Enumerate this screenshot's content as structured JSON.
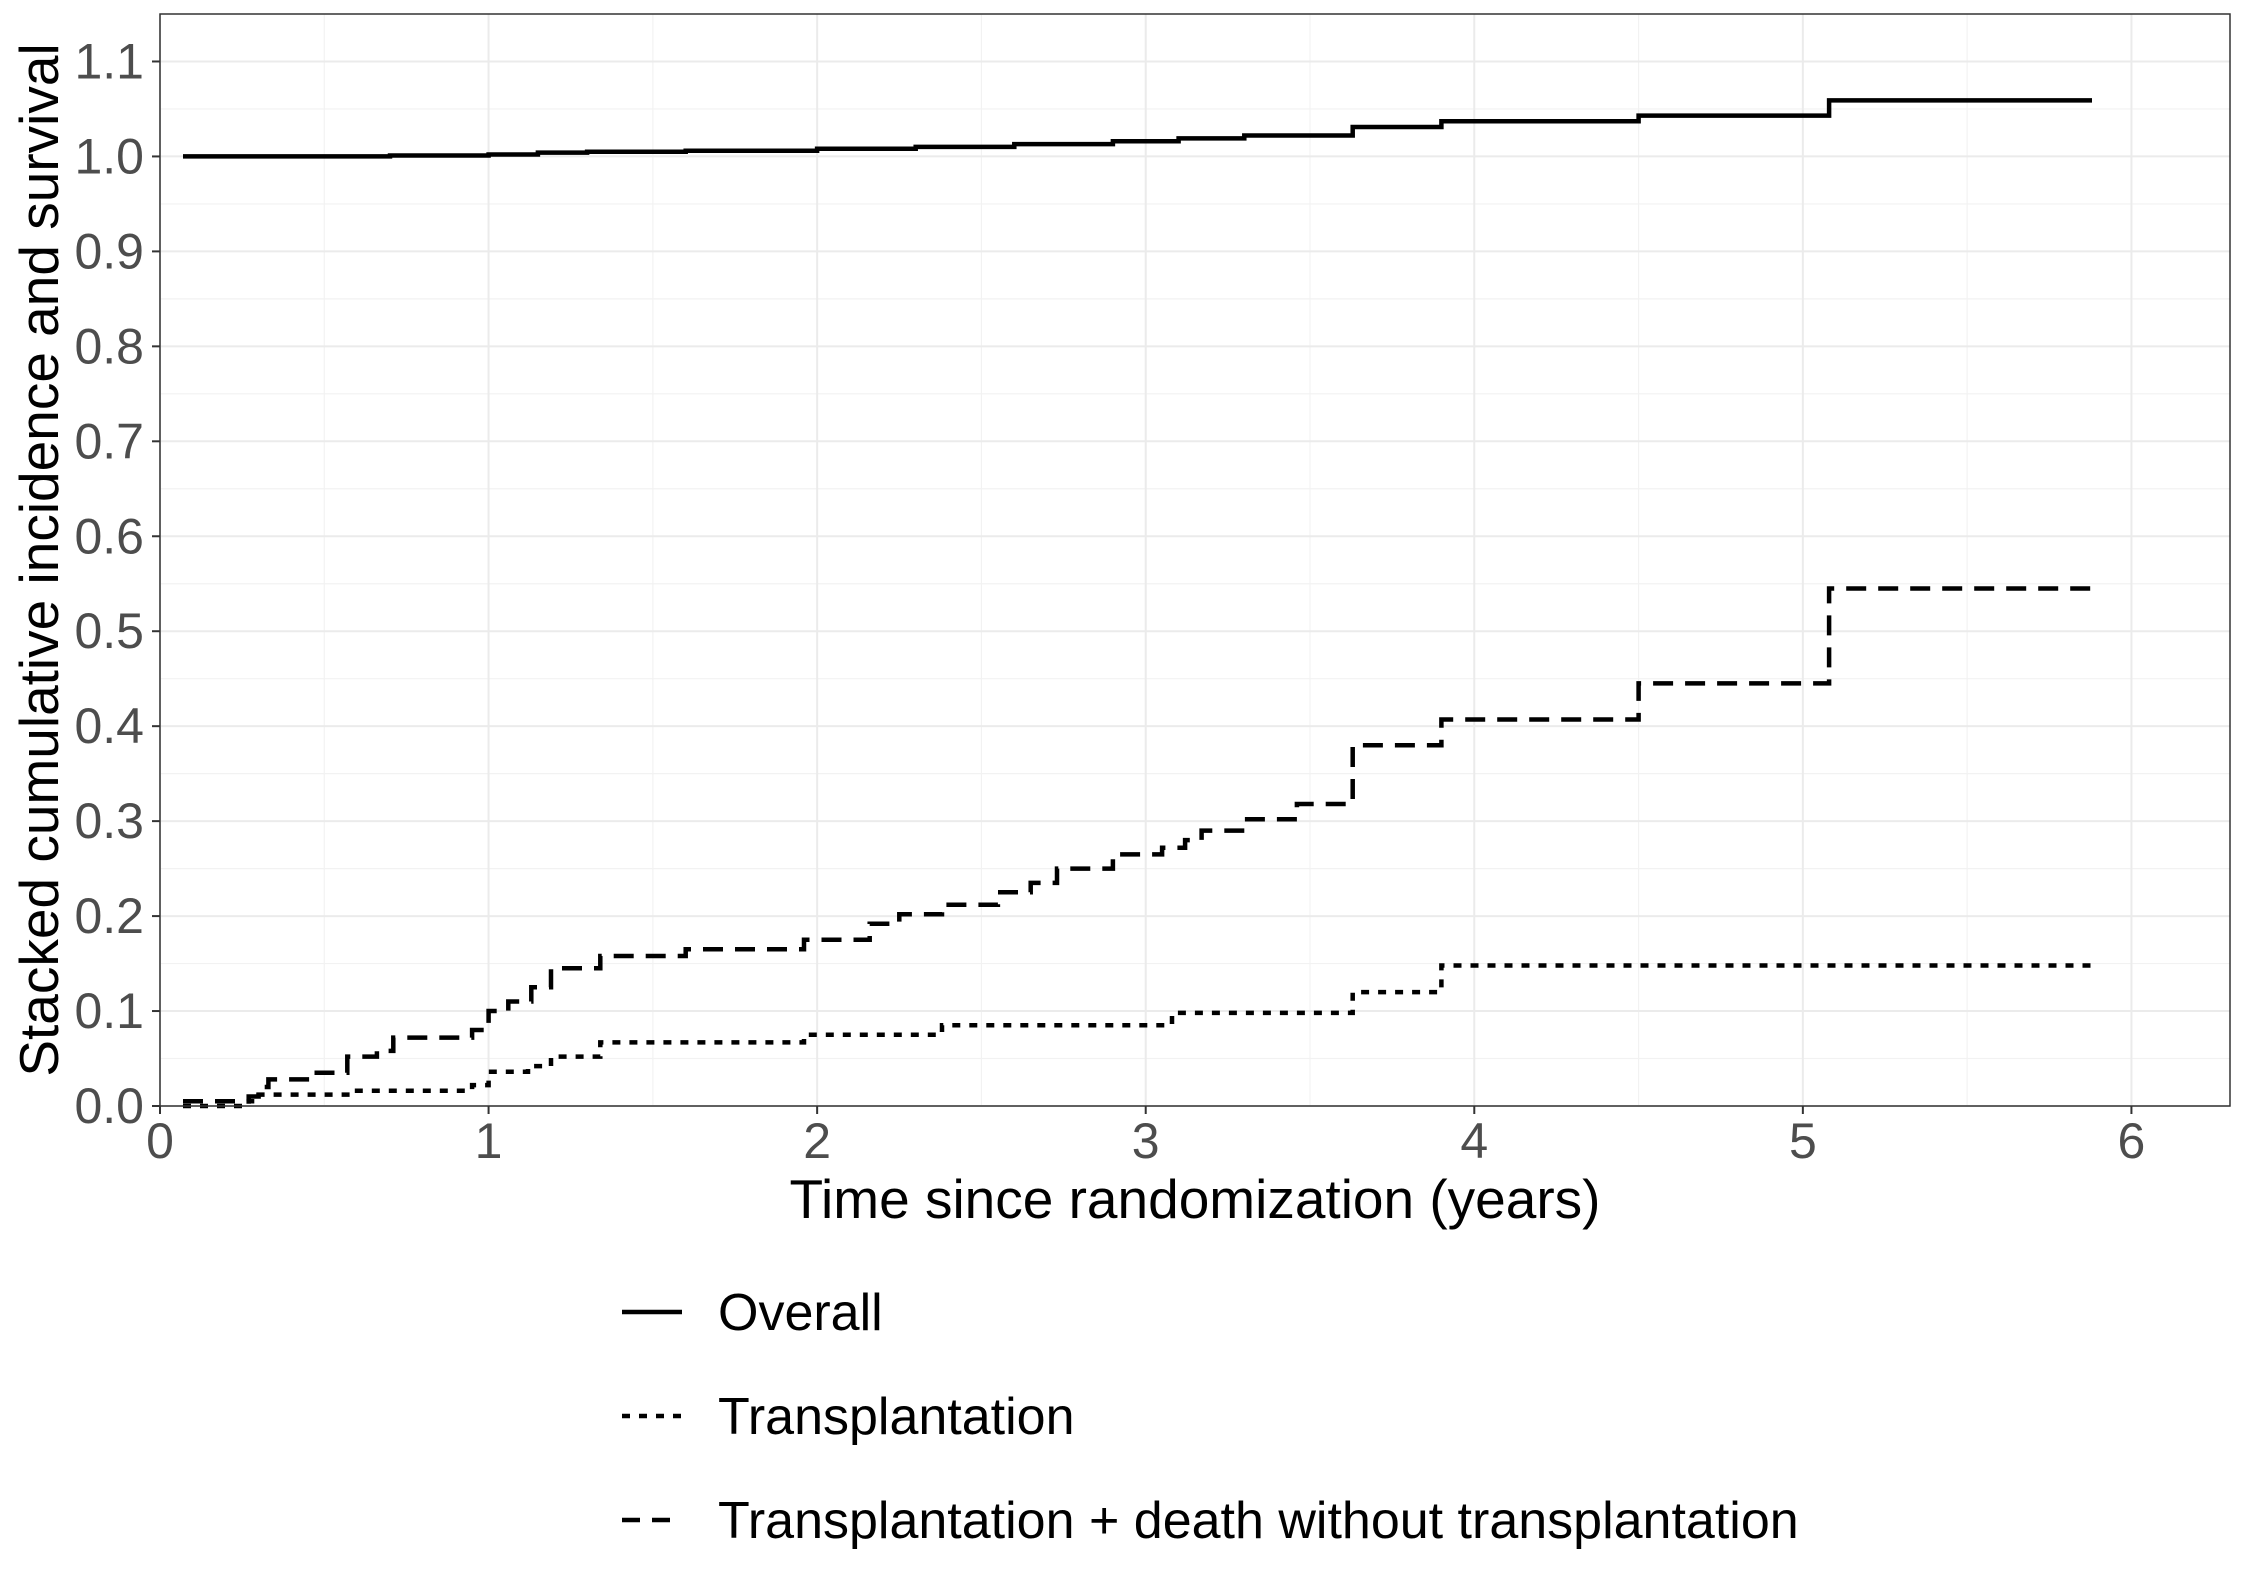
{
  "chart_data": {
    "type": "line",
    "title": "",
    "xlabel": "Time since randomization (years)",
    "ylabel": "Stacked cumulative incidence and survival",
    "xlim": [
      0,
      6.3
    ],
    "ylim": [
      0,
      1.15
    ],
    "x_ticks": [
      0,
      1,
      2,
      3,
      4,
      5,
      6
    ],
    "x_tick_labels": [
      "0",
      "1",
      "2",
      "3",
      "4",
      "5",
      "6"
    ],
    "y_ticks": [
      0.0,
      0.1,
      0.2,
      0.3,
      0.4,
      0.5,
      0.6,
      0.7,
      0.8,
      0.9,
      1.0,
      1.1
    ],
    "y_tick_labels": [
      "0.0",
      "0.1",
      "0.2",
      "0.3",
      "0.4",
      "0.5",
      "0.6",
      "0.7",
      "0.8",
      "0.9",
      "1.0",
      "1.1"
    ],
    "grid": true,
    "legend_position": "bottom",
    "series": [
      {
        "name": "Overall",
        "line_style": "solid",
        "color": "#000000",
        "x": [
          0.07,
          0.7,
          1.0,
          1.15,
          1.3,
          1.6,
          2.0,
          2.3,
          2.6,
          2.9,
          3.1,
          3.3,
          3.63,
          3.9,
          4.5,
          5.08,
          5.88
        ],
        "y": [
          1.0,
          1.001,
          1.002,
          1.004,
          1.005,
          1.006,
          1.008,
          1.01,
          1.013,
          1.016,
          1.019,
          1.022,
          1.031,
          1.037,
          1.043,
          1.059,
          1.059
        ]
      },
      {
        "name": "Transplantation",
        "line_style": "dotted",
        "color": "#000000",
        "x": [
          0.07,
          0.15,
          0.27,
          0.3,
          0.58,
          0.95,
          1.0,
          1.12,
          1.19,
          1.34,
          1.96,
          2.38,
          3.08,
          3.63,
          3.9,
          5.88
        ],
        "y": [
          0.0,
          0.0,
          0.005,
          0.012,
          0.016,
          0.022,
          0.036,
          0.042,
          0.052,
          0.067,
          0.075,
          0.085,
          0.098,
          0.12,
          0.148,
          0.148
        ]
      },
      {
        "name": "Transplantation + death without transplantation",
        "line_style": "dashed",
        "color": "#000000",
        "x": [
          0.07,
          0.27,
          0.3,
          0.33,
          0.47,
          0.57,
          0.66,
          0.71,
          0.95,
          1.0,
          1.06,
          1.13,
          1.19,
          1.34,
          1.6,
          1.96,
          2.16,
          2.25,
          2.38,
          2.55,
          2.65,
          2.73,
          2.9,
          3.05,
          3.12,
          3.17,
          3.3,
          3.46,
          3.63,
          3.9,
          4.5,
          5.08,
          5.88
        ],
        "y": [
          0.005,
          0.01,
          0.02,
          0.028,
          0.035,
          0.052,
          0.058,
          0.072,
          0.08,
          0.1,
          0.11,
          0.125,
          0.145,
          0.158,
          0.165,
          0.175,
          0.192,
          0.202,
          0.212,
          0.225,
          0.235,
          0.25,
          0.265,
          0.272,
          0.28,
          0.29,
          0.302,
          0.318,
          0.38,
          0.407,
          0.445,
          0.545,
          0.545
        ]
      }
    ]
  },
  "legend": {
    "items": [
      {
        "label": "Overall",
        "line_style": "solid"
      },
      {
        "label": "Transplantation",
        "line_style": "dotted"
      },
      {
        "label": "Transplantation + death without transplantation",
        "line_style": "dashed"
      }
    ]
  }
}
